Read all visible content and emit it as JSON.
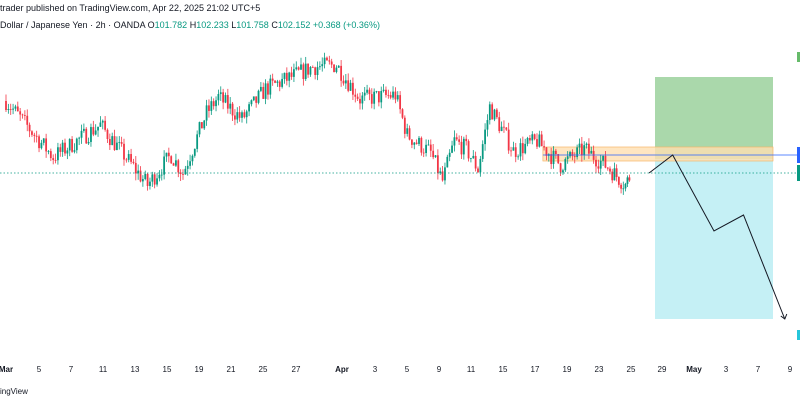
{
  "header": {
    "published": "trader published on TradingView.com, Apr 22, 2025 21:02 UTC+5",
    "symbol": "Dollar / Japanese Yen · 2h · OANDA",
    "o_label": "O",
    "o_value": "101.782",
    "h_label": "H",
    "h_value": "102.233",
    "l_label": "L",
    "l_value": "101.758",
    "c_label": "C",
    "c_value": "102.152",
    "change": "+0.368 (+0.36%)"
  },
  "footer": {
    "brand": "ingView"
  },
  "chart_data": {
    "type": "candlestick",
    "x_tick_labels": [
      "Mar",
      "5",
      "7",
      "11",
      "13",
      "15",
      "19",
      "21",
      "25",
      "27",
      "Apr",
      "3",
      "5",
      "9",
      "11",
      "15",
      "17",
      "19",
      "23",
      "25",
      "29",
      "May",
      "3",
      "7",
      "9"
    ],
    "bold_ticks": [
      "Mar",
      "Apr",
      "May"
    ],
    "price_segments": [
      {
        "from_day": 0,
        "to_day": 4,
        "start": 149.2,
        "end": 146.4
      },
      {
        "from_day": 4,
        "to_day": 8,
        "start": 146.4,
        "end": 148.0
      },
      {
        "from_day": 8,
        "to_day": 12,
        "start": 148.0,
        "end": 145.0
      },
      {
        "from_day": 12,
        "to_day": 14,
        "start": 145.0,
        "end": 146.5
      },
      {
        "from_day": 14,
        "to_day": 15,
        "start": 146.5,
        "end": 145.6
      },
      {
        "from_day": 15,
        "to_day": 17,
        "start": 145.6,
        "end": 148.6
      },
      {
        "from_day": 17,
        "to_day": 18,
        "start": 148.6,
        "end": 149.4
      },
      {
        "from_day": 18,
        "to_day": 20,
        "start": 149.4,
        "end": 148.3
      },
      {
        "from_day": 20,
        "to_day": 22,
        "start": 148.3,
        "end": 149.8
      },
      {
        "from_day": 22,
        "to_day": 26,
        "start": 149.8,
        "end": 150.9
      },
      {
        "from_day": 26,
        "to_day": 28,
        "start": 150.9,
        "end": 151.0
      },
      {
        "from_day": 28,
        "to_day": 30,
        "start": 151.0,
        "end": 149.3
      },
      {
        "from_day": 30,
        "to_day": 33,
        "start": 149.3,
        "end": 149.5
      },
      {
        "from_day": 33,
        "to_day": 34,
        "start": 149.5,
        "end": 147.5
      },
      {
        "from_day": 34,
        "to_day": 36,
        "start": 147.5,
        "end": 146.6
      },
      {
        "from_day": 36,
        "to_day": 37,
        "start": 146.6,
        "end": 145.2
      },
      {
        "from_day": 37,
        "to_day": 38,
        "start": 145.2,
        "end": 147.2
      },
      {
        "from_day": 38,
        "to_day": 39,
        "start": 147.2,
        "end": 146.8
      },
      {
        "from_day": 39,
        "to_day": 40,
        "start": 146.8,
        "end": 145.8
      },
      {
        "from_day": 40,
        "to_day": 41,
        "start": 145.8,
        "end": 148.9
      },
      {
        "from_day": 41,
        "to_day": 43,
        "start": 148.9,
        "end": 146.7
      },
      {
        "from_day": 43,
        "to_day": 45,
        "start": 146.7,
        "end": 147.2
      },
      {
        "from_day": 45,
        "to_day": 47,
        "start": 147.2,
        "end": 146.0
      },
      {
        "from_day": 47,
        "to_day": 49,
        "start": 146.0,
        "end": 146.8
      },
      {
        "from_day": 49,
        "to_day": 51,
        "start": 146.8,
        "end": 145.9
      },
      {
        "from_day": 51,
        "to_day": 52.5,
        "start": 145.9,
        "end": 145.0
      },
      {
        "from_day": 52.5,
        "to_day": 53,
        "start": 145.0,
        "end": 145.6
      }
    ],
    "current_price_line": 145.6,
    "resistance_line": 146.5,
    "resistance_zone": {
      "from_day": 45.5,
      "to_day": 65,
      "low": 146.2,
      "high": 146.9
    },
    "position": {
      "from_day": 55,
      "to_day": 65,
      "entry": 146.3,
      "target": 138.3,
      "stop": 150.4,
      "target_fill": "#b2ebf2",
      "stop_fill": "#a5d6a7"
    },
    "projection": [
      {
        "day": 54.5,
        "price": 145.6
      },
      {
        "day": 56.5,
        "price": 146.5
      },
      {
        "day": 60,
        "price": 142.7
      },
      {
        "day": 62.5,
        "price": 143.5
      },
      {
        "day": 66,
        "price": 138.3
      }
    ],
    "colors": {
      "up": "#089981",
      "down": "#f23645",
      "grid_text": "#131722",
      "hline": "#2962ff"
    }
  }
}
